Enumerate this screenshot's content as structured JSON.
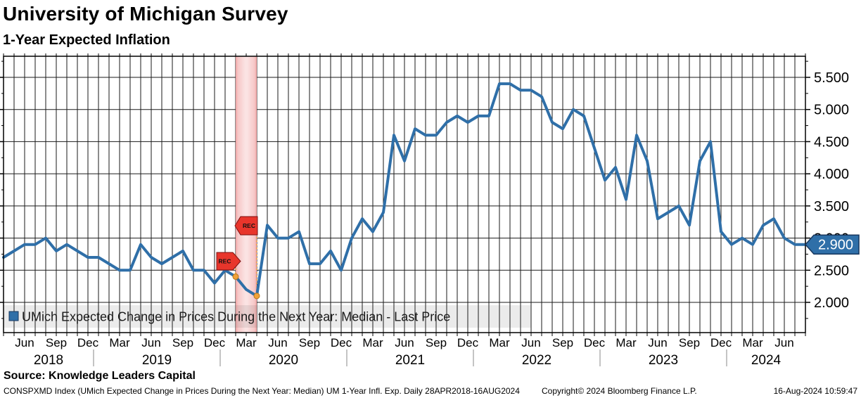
{
  "header": {
    "title": "University of Michigan Survey",
    "subtitle": "1-Year Expected Inflation"
  },
  "legend": {
    "label": "UMich Expected Change in Prices During the Next Year: Median - Last Price"
  },
  "source_line": "Source: Knowledge Leaders Capital",
  "footer": {
    "left": "CONSPXMD Index (UMich Expected Change in Prices During the Next Year: Median) UM 1-Year Infl. Exp.  Daily 28APR2018-16AUG2024",
    "copyright": "Copyright© 2024 Bloomberg Finance L.P.",
    "datetime": "16-Aug-2024 10:59:47"
  },
  "last_price_tag": "2.900",
  "colors": {
    "line": "#2f6fa8",
    "tag_fill": "#2f6fa8",
    "tag_border": "#17375e",
    "grid": "#1a1a1a",
    "recession_fill_edge": "#eda0a0",
    "recession_fill_center": "#fbe3e3",
    "rec_flag": "#e8352b",
    "marker_orange": "#f0a13a",
    "legend_bg": "rgba(60,60,60,0.10)",
    "year_separator": "#888888"
  },
  "chart_data": {
    "type": "line",
    "title": "University of Michigan Survey",
    "subtitle": "1-Year Expected Inflation",
    "series": [
      {
        "name": "UMich Expected Change in Prices During the Next Year: Median - Last Price",
        "values": [
          2.7,
          2.8,
          2.9,
          2.9,
          3.0,
          2.8,
          2.9,
          2.8,
          2.7,
          2.7,
          2.6,
          2.5,
          2.5,
          2.9,
          2.7,
          2.6,
          2.7,
          2.8,
          2.5,
          2.5,
          2.3,
          2.5,
          2.4,
          2.2,
          2.1,
          3.2,
          3.0,
          3.0,
          3.1,
          2.6,
          2.6,
          2.8,
          2.5,
          3.0,
          3.3,
          3.1,
          3.4,
          4.6,
          4.2,
          4.7,
          4.6,
          4.6,
          4.8,
          4.9,
          4.8,
          4.9,
          4.9,
          5.4,
          5.4,
          5.3,
          5.3,
          5.2,
          4.8,
          4.7,
          5.0,
          4.9,
          4.4,
          3.9,
          4.1,
          3.6,
          4.6,
          4.2,
          3.3,
          3.4,
          3.5,
          3.2,
          4.2,
          4.5,
          3.1,
          2.9,
          3.0,
          2.9,
          3.2,
          3.3,
          3.0,
          2.9,
          2.9
        ]
      }
    ],
    "categories": [
      "Apr 2018",
      "May 2018",
      "Jun 2018",
      "Jul 2018",
      "Aug 2018",
      "Sep 2018",
      "Oct 2018",
      "Nov 2018",
      "Dec 2018",
      "Jan 2019",
      "Feb 2019",
      "Mar 2019",
      "Apr 2019",
      "May 2019",
      "Jun 2019",
      "Jul 2019",
      "Aug 2019",
      "Sep 2019",
      "Oct 2019",
      "Nov 2019",
      "Dec 2019",
      "Jan 2020",
      "Feb 2020",
      "Mar 2020",
      "Apr 2020",
      "May 2020",
      "Jun 2020",
      "Jul 2020",
      "Aug 2020",
      "Sep 2020",
      "Oct 2020",
      "Nov 2020",
      "Dec 2020",
      "Jan 2021",
      "Feb 2021",
      "Mar 2021",
      "Apr 2021",
      "May 2021",
      "Jun 2021",
      "Jul 2021",
      "Aug 2021",
      "Sep 2021",
      "Oct 2021",
      "Nov 2021",
      "Dec 2021",
      "Jan 2022",
      "Feb 2022",
      "Mar 2022",
      "Apr 2022",
      "May 2022",
      "Jun 2022",
      "Jul 2022",
      "Aug 2022",
      "Sep 2022",
      "Oct 2022",
      "Nov 2022",
      "Dec 2022",
      "Jan 2023",
      "Feb 2023",
      "Mar 2023",
      "Apr 2023",
      "May 2023",
      "Jun 2023",
      "Jul 2023",
      "Aug 2023",
      "Sep 2023",
      "Oct 2023",
      "Nov 2023",
      "Dec 2023",
      "Jan 2024",
      "Feb 2024",
      "Mar 2024",
      "Apr 2024",
      "May 2024",
      "Jun 2024",
      "Jul 2024",
      "Aug 2024"
    ],
    "x_tick_labels": [
      "Jun",
      "Sep",
      "Dec",
      "Mar",
      "Jun",
      "Sep",
      "Dec",
      "Mar",
      "Jun",
      "Sep",
      "Dec",
      "Mar",
      "Jun",
      "Sep",
      "Dec",
      "Mar",
      "Jun",
      "Sep",
      "Dec",
      "Mar",
      "Jun",
      "Sep",
      "Dec",
      "Mar",
      "Jun"
    ],
    "year_labels": [
      "2018",
      "2019",
      "2020",
      "2021",
      "2022",
      "2023",
      "2024"
    ],
    "y_tick_labels": [
      "2.000",
      "2.500",
      "3.000",
      "3.500",
      "4.000",
      "4.500",
      "5.000",
      "5.500"
    ],
    "y_ticks": [
      2.0,
      2.5,
      3.0,
      3.5,
      4.0,
      4.5,
      5.0,
      5.5
    ],
    "ylim": [
      1.53,
      5.83
    ],
    "axis_side": "right",
    "grid": "on",
    "legend_position": "bottom-left",
    "last_price": 2.9,
    "last_price_label": "2.900",
    "recession_band": {
      "start": "Feb 2020",
      "end": "Apr 2020",
      "flag_label": "REC",
      "start_value": 2.4,
      "end_value": 2.1
    }
  }
}
